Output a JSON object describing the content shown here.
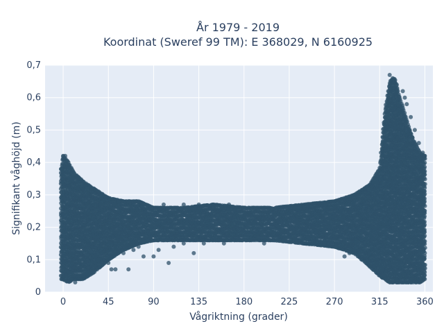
{
  "chart_data": {
    "type": "scatter",
    "title": "År 1979 - 2019",
    "subtitle": "Koordinat (Sweref 99 TM): E 368029, N 6160925",
    "xlabel": "Vågriktning (grader)",
    "ylabel": "Signifikant våghöjd (m)",
    "xlim": [
      -18,
      368
    ],
    "ylim": [
      0,
      0.7
    ],
    "x_ticks": [
      0,
      45,
      90,
      135,
      180,
      225,
      270,
      315,
      360
    ],
    "x_tick_labels": [
      "0",
      "45",
      "90",
      "135",
      "180",
      "225",
      "270",
      "315",
      "360"
    ],
    "y_ticks": [
      0,
      0.1,
      0.2,
      0.3,
      0.4,
      0.5,
      0.6,
      0.7
    ],
    "y_tick_labels": [
      "0",
      "0,1",
      "0,2",
      "0,3",
      "0,4",
      "0,5",
      "0,6",
      "0,7"
    ],
    "grid": true,
    "colors": {
      "marker": "#2f5269",
      "plot_bg": "#e5ecf6",
      "grid": "#ffffff",
      "text": "#2a3f5f"
    },
    "envelope": [
      {
        "x": -2,
        "lo": 0.04,
        "hi": 0.38
      },
      {
        "x": 0,
        "lo": 0.04,
        "hi": 0.42
      },
      {
        "x": 5,
        "lo": 0.03,
        "hi": 0.4
      },
      {
        "x": 10,
        "lo": 0.04,
        "hi": 0.37
      },
      {
        "x": 20,
        "lo": 0.04,
        "hi": 0.34
      },
      {
        "x": 30,
        "lo": 0.06,
        "hi": 0.32
      },
      {
        "x": 45,
        "lo": 0.1,
        "hi": 0.29
      },
      {
        "x": 60,
        "lo": 0.13,
        "hi": 0.28
      },
      {
        "x": 75,
        "lo": 0.15,
        "hi": 0.28
      },
      {
        "x": 90,
        "lo": 0.16,
        "hi": 0.26
      },
      {
        "x": 120,
        "lo": 0.16,
        "hi": 0.26
      },
      {
        "x": 150,
        "lo": 0.16,
        "hi": 0.27
      },
      {
        "x": 180,
        "lo": 0.16,
        "hi": 0.26
      },
      {
        "x": 210,
        "lo": 0.16,
        "hi": 0.26
      },
      {
        "x": 240,
        "lo": 0.15,
        "hi": 0.27
      },
      {
        "x": 270,
        "lo": 0.14,
        "hi": 0.28
      },
      {
        "x": 290,
        "lo": 0.12,
        "hi": 0.3
      },
      {
        "x": 305,
        "lo": 0.08,
        "hi": 0.33
      },
      {
        "x": 315,
        "lo": 0.05,
        "hi": 0.38
      },
      {
        "x": 320,
        "lo": 0.04,
        "hi": 0.55
      },
      {
        "x": 325,
        "lo": 0.03,
        "hi": 0.65
      },
      {
        "x": 330,
        "lo": 0.03,
        "hi": 0.66
      },
      {
        "x": 335,
        "lo": 0.03,
        "hi": 0.6
      },
      {
        "x": 340,
        "lo": 0.03,
        "hi": 0.55
      },
      {
        "x": 345,
        "lo": 0.03,
        "hi": 0.5
      },
      {
        "x": 350,
        "lo": 0.03,
        "hi": 0.46
      },
      {
        "x": 355,
        "lo": 0.03,
        "hi": 0.43
      },
      {
        "x": 360,
        "lo": 0.04,
        "hi": 0.42
      }
    ],
    "points": [
      [
        0,
        0.42
      ],
      [
        2,
        0.42
      ],
      [
        -2,
        0.38
      ],
      [
        8,
        0.37
      ],
      [
        15,
        0.35
      ],
      [
        22,
        0.33
      ],
      [
        28,
        0.32
      ],
      [
        10,
        0.05
      ],
      [
        12,
        0.03
      ],
      [
        20,
        0.05
      ],
      [
        25,
        0.06
      ],
      [
        30,
        0.08
      ],
      [
        35,
        0.1
      ],
      [
        38,
        0.12
      ],
      [
        45,
        0.09
      ],
      [
        48,
        0.07
      ],
      [
        52,
        0.07
      ],
      [
        60,
        0.12
      ],
      [
        65,
        0.07
      ],
      [
        70,
        0.13
      ],
      [
        75,
        0.14
      ],
      [
        80,
        0.11
      ],
      [
        90,
        0.11
      ],
      [
        95,
        0.13
      ],
      [
        105,
        0.09
      ],
      [
        110,
        0.14
      ],
      [
        120,
        0.15
      ],
      [
        130,
        0.12
      ],
      [
        140,
        0.15
      ],
      [
        160,
        0.15
      ],
      [
        175,
        0.16
      ],
      [
        200,
        0.15
      ],
      [
        220,
        0.16
      ],
      [
        240,
        0.15
      ],
      [
        260,
        0.15
      ],
      [
        272,
        0.14
      ],
      [
        280,
        0.11
      ],
      [
        285,
        0.12
      ],
      [
        290,
        0.13
      ],
      [
        295,
        0.12
      ],
      [
        300,
        0.11
      ],
      [
        305,
        0.12
      ],
      [
        308,
        0.1
      ],
      [
        312,
        0.09
      ],
      [
        316,
        0.05
      ],
      [
        318,
        0.07
      ],
      [
        320,
        0.05
      ],
      [
        50,
        0.27
      ],
      [
        55,
        0.28
      ],
      [
        65,
        0.28
      ],
      [
        80,
        0.27
      ],
      [
        100,
        0.27
      ],
      [
        120,
        0.27
      ],
      [
        135,
        0.27
      ],
      [
        150,
        0.27
      ],
      [
        165,
        0.27
      ],
      [
        180,
        0.26
      ],
      [
        200,
        0.26
      ],
      [
        225,
        0.26
      ],
      [
        250,
        0.27
      ],
      [
        265,
        0.27
      ],
      [
        285,
        0.29
      ],
      [
        300,
        0.32
      ],
      [
        308,
        0.34
      ],
      [
        312,
        0.34
      ],
      [
        325,
        0.67
      ],
      [
        328,
        0.66
      ],
      [
        330,
        0.65
      ],
      [
        332,
        0.64
      ],
      [
        338,
        0.62
      ],
      [
        340,
        0.6
      ],
      [
        342,
        0.58
      ],
      [
        346,
        0.54
      ],
      [
        350,
        0.5
      ],
      [
        354,
        0.46
      ],
      [
        358,
        0.43
      ],
      [
        360,
        0.42
      ]
    ]
  }
}
